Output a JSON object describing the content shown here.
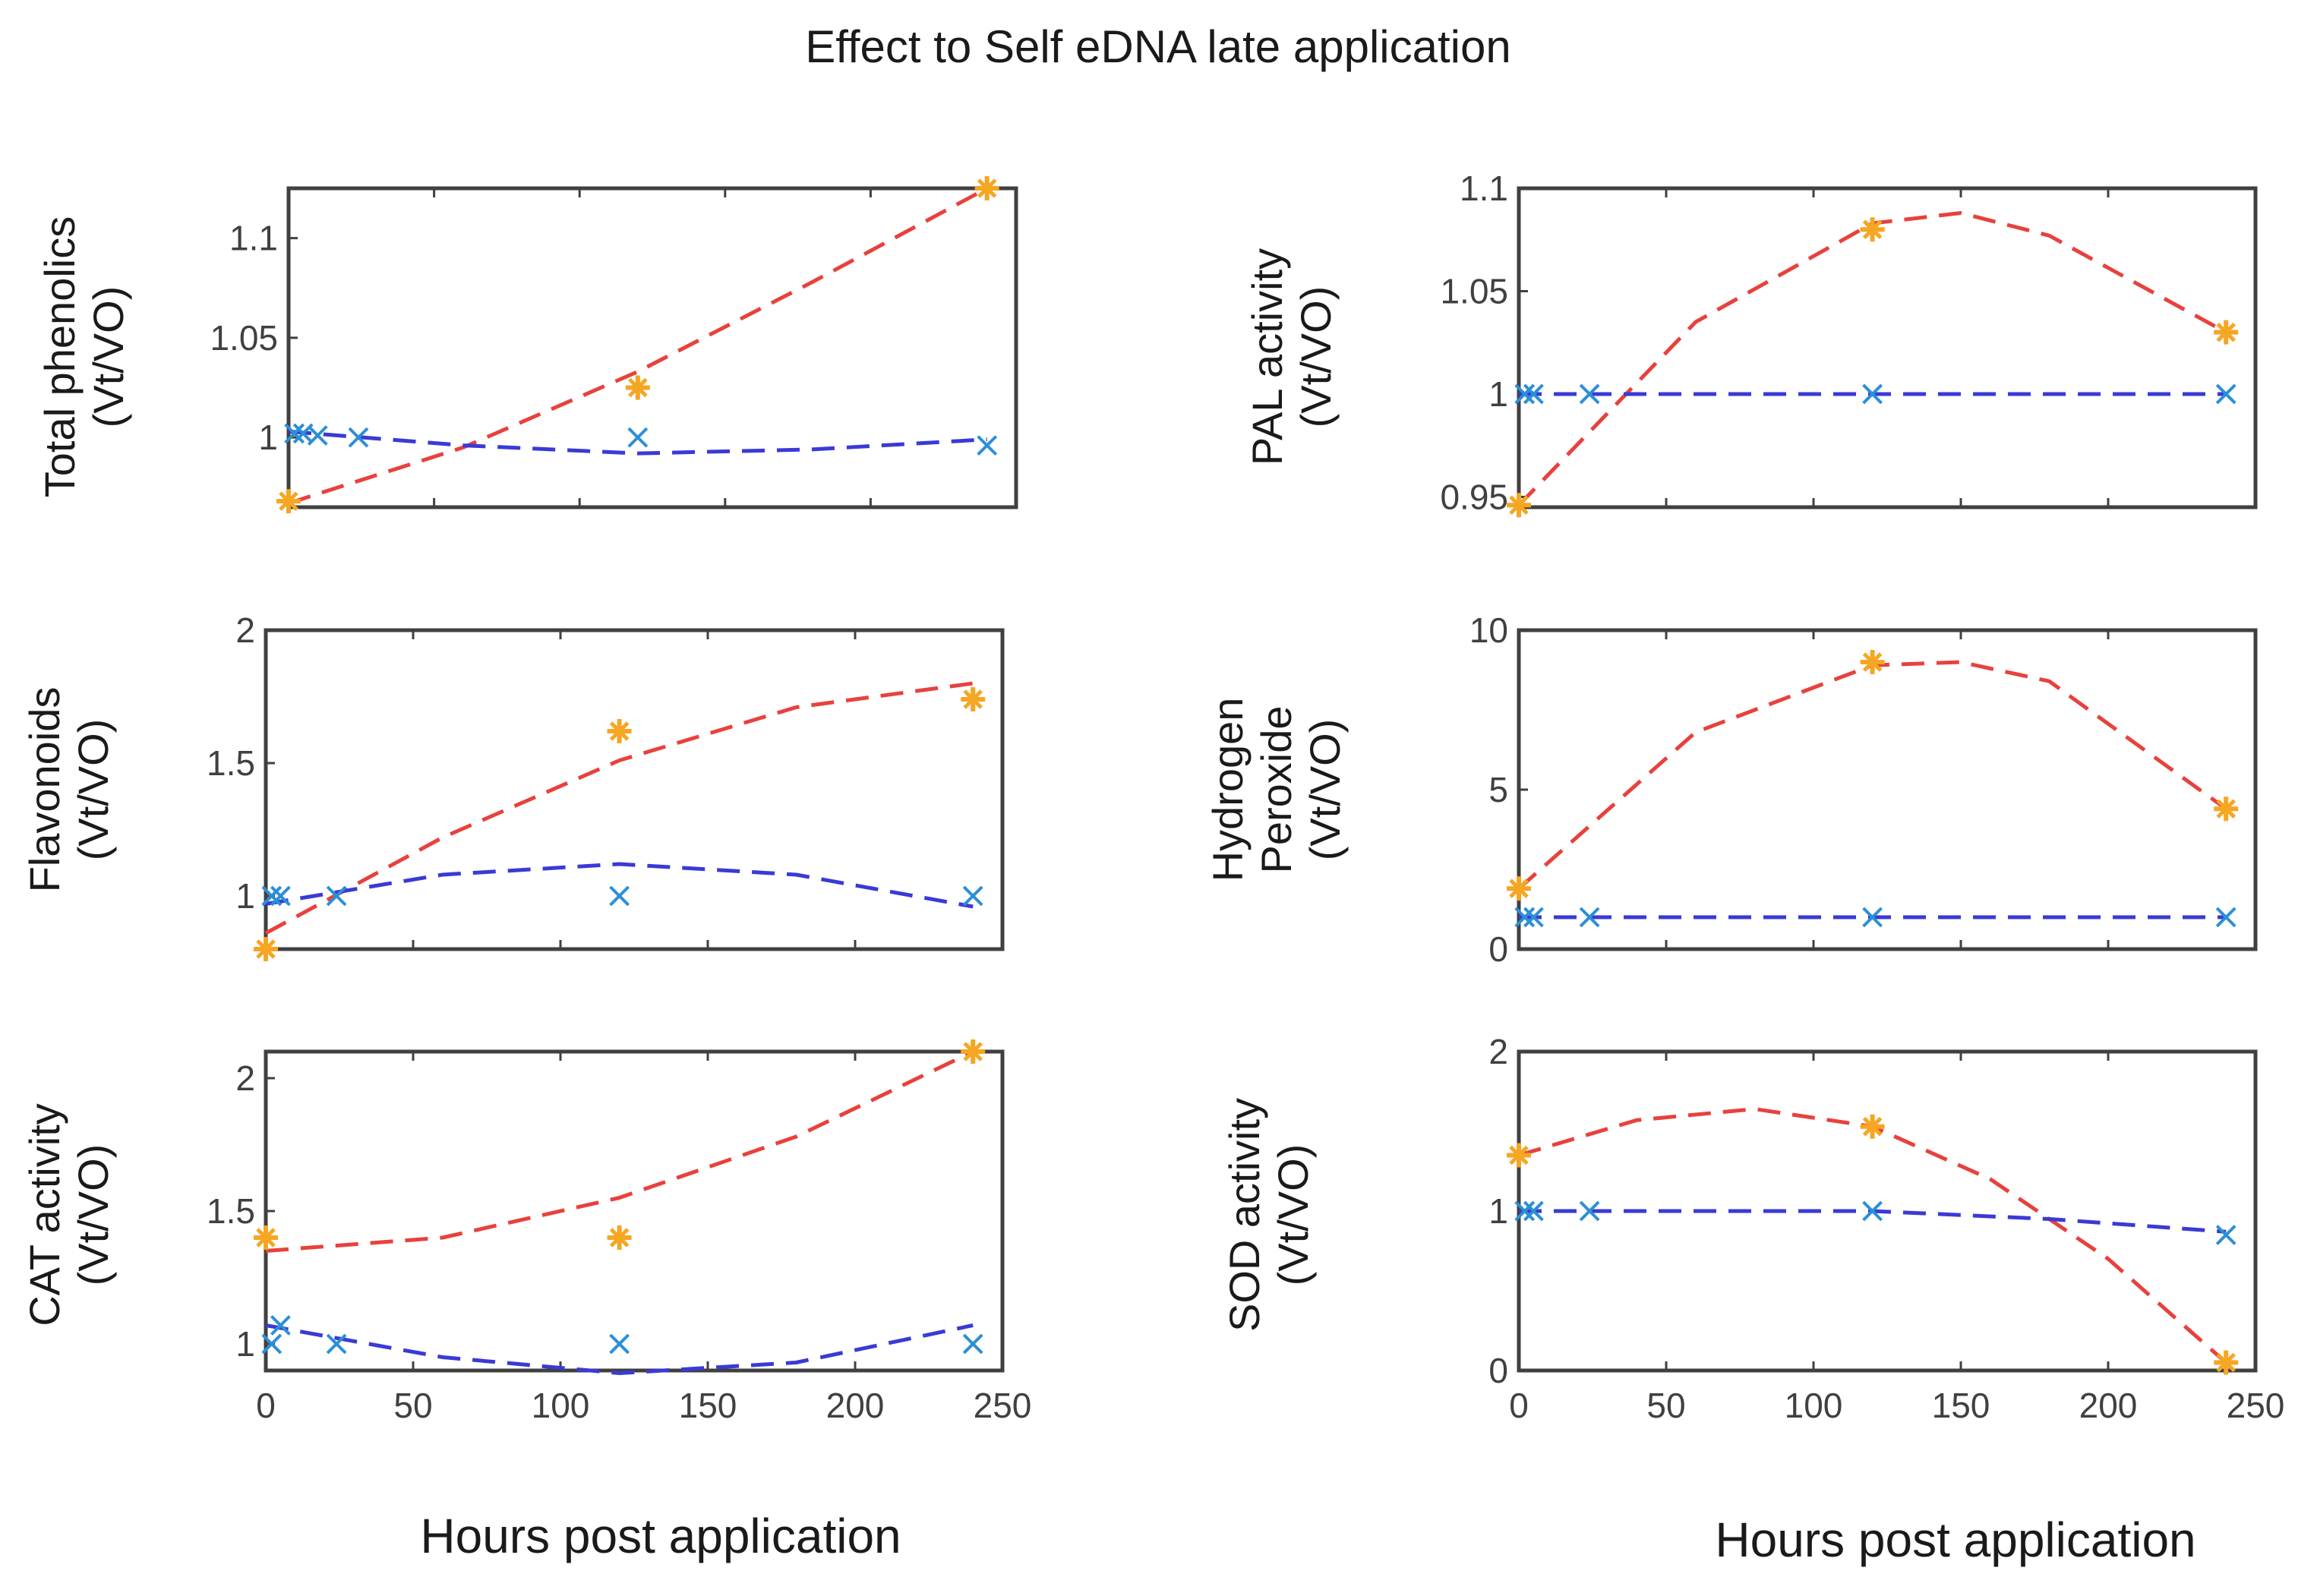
{
  "title": "Effect to Self  eDNA late application",
  "xlabel_left": "Hours post application",
  "xlabel_right": "Hours post application",
  "colors": {
    "treated_marker": "#f5a623",
    "treated_fit": "#e8413c",
    "control_marker": "#2b8fd6",
    "control_fit": "#3a3ad6"
  },
  "chart_data": [
    {
      "type": "scatter",
      "ylabel": [
        "Total phenolics",
        "(Vt/VO)"
      ],
      "xlim": [
        0,
        250
      ],
      "ylim": [
        0.965,
        1.125
      ],
      "xticks": [],
      "yticks": [
        1,
        1.05,
        1.1
      ],
      "yticklabels": [
        "1",
        "1.05",
        "1.1"
      ],
      "series": [
        {
          "role": "treated",
          "points": [
            [
              0,
              0.968
            ],
            [
              120,
              1.025
            ],
            [
              240,
              1.125
            ]
          ],
          "fit": [
            [
              0,
              0.967
            ],
            [
              60,
              0.995
            ],
            [
              120,
              1.033
            ],
            [
              180,
              1.078
            ],
            [
              240,
              1.125
            ]
          ]
        },
        {
          "role": "control",
          "points": [
            [
              2,
              1.002
            ],
            [
              5,
              1.002
            ],
            [
              10,
              1.001
            ],
            [
              24,
              1.0
            ],
            [
              120,
              1.0
            ],
            [
              240,
              0.996
            ]
          ],
          "fit": [
            [
              0,
              1.003
            ],
            [
              60,
              0.996
            ],
            [
              120,
              0.992
            ],
            [
              180,
              0.994
            ],
            [
              240,
              0.999
            ]
          ]
        }
      ]
    },
    {
      "type": "scatter",
      "ylabel": [
        "PAL activity",
        "(Vt/VO)"
      ],
      "xlim": [
        0,
        250
      ],
      "ylim": [
        0.945,
        1.1
      ],
      "xticks": [],
      "yticks": [
        0.95,
        1,
        1.05,
        1.1
      ],
      "yticklabels": [
        "0.95",
        "1",
        "1.05",
        "1.1"
      ],
      "series": [
        {
          "role": "treated",
          "points": [
            [
              0,
              0.946
            ],
            [
              120,
              1.08
            ],
            [
              240,
              1.03
            ]
          ],
          "fit": [
            [
              0,
              0.946
            ],
            [
              60,
              1.035
            ],
            [
              120,
              1.083
            ],
            [
              150,
              1.088
            ],
            [
              180,
              1.077
            ],
            [
              240,
              1.03
            ]
          ]
        },
        {
          "role": "control",
          "points": [
            [
              2,
              1.0
            ],
            [
              5,
              1.0
            ],
            [
              24,
              1.0
            ],
            [
              120,
              1.0
            ],
            [
              240,
              1.0
            ]
          ],
          "fit": [
            [
              0,
              1.0
            ],
            [
              240,
              1.0
            ]
          ]
        }
      ]
    },
    {
      "type": "scatter",
      "ylabel": [
        "Flavonoids",
        "(Vt/VO)"
      ],
      "xlim": [
        0,
        250
      ],
      "ylim": [
        0.8,
        2.0
      ],
      "xticks": [],
      "yticks": [
        1,
        1.5,
        2
      ],
      "yticklabels": [
        "1",
        "1.5",
        "2"
      ],
      "series": [
        {
          "role": "treated",
          "points": [
            [
              0,
              0.8
            ],
            [
              120,
              1.62
            ],
            [
              240,
              1.74
            ]
          ],
          "fit": [
            [
              0,
              0.86
            ],
            [
              60,
              1.22
            ],
            [
              120,
              1.51
            ],
            [
              180,
              1.71
            ],
            [
              240,
              1.8
            ]
          ]
        },
        {
          "role": "control",
          "points": [
            [
              2,
              1.0
            ],
            [
              5,
              1.0
            ],
            [
              24,
              1.0
            ],
            [
              120,
              1.0
            ],
            [
              240,
              1.0
            ]
          ],
          "fit": [
            [
              0,
              0.97
            ],
            [
              60,
              1.08
            ],
            [
              120,
              1.12
            ],
            [
              180,
              1.08
            ],
            [
              240,
              0.96
            ]
          ]
        }
      ]
    },
    {
      "type": "scatter",
      "ylabel": [
        "Hydrogen",
        "Peroxide",
        "(Vt/VO)"
      ],
      "xlim": [
        0,
        250
      ],
      "ylim": [
        0,
        10
      ],
      "xticks": [],
      "yticks": [
        0,
        5,
        10
      ],
      "yticklabels": [
        "0",
        "5",
        "10"
      ],
      "series": [
        {
          "role": "treated",
          "points": [
            [
              0,
              1.9
            ],
            [
              120,
              9.0
            ],
            [
              240,
              4.4
            ]
          ],
          "fit": [
            [
              0,
              1.9
            ],
            [
              60,
              6.8
            ],
            [
              120,
              8.9
            ],
            [
              150,
              9.0
            ],
            [
              180,
              8.4
            ],
            [
              240,
              4.4
            ]
          ]
        },
        {
          "role": "control",
          "points": [
            [
              2,
              1.0
            ],
            [
              5,
              1.0
            ],
            [
              24,
              1.0
            ],
            [
              120,
              1.0
            ],
            [
              240,
              1.0
            ]
          ],
          "fit": [
            [
              0,
              1.0
            ],
            [
              240,
              1.0
            ]
          ]
        }
      ]
    },
    {
      "type": "scatter",
      "ylabel": [
        "CAT activity",
        "(Vt/VO)"
      ],
      "xlim": [
        0,
        250
      ],
      "ylim": [
        0.9,
        2.1
      ],
      "xticks": [
        0,
        50,
        100,
        150,
        200,
        250
      ],
      "xticklabels": [
        "0",
        "50",
        "100",
        "150",
        "200",
        "250"
      ],
      "yticks": [
        1,
        1.5,
        2
      ],
      "yticklabels": [
        "1",
        "1.5",
        "2"
      ],
      "series": [
        {
          "role": "treated",
          "points": [
            [
              0,
              1.4
            ],
            [
              120,
              1.4
            ],
            [
              240,
              2.1
            ]
          ],
          "fit": [
            [
              0,
              1.35
            ],
            [
              60,
              1.4
            ],
            [
              120,
              1.55
            ],
            [
              180,
              1.78
            ],
            [
              240,
              2.1
            ]
          ]
        },
        {
          "role": "control",
          "points": [
            [
              2,
              1.0
            ],
            [
              5,
              1.07
            ],
            [
              24,
              1.0
            ],
            [
              120,
              1.0
            ],
            [
              240,
              1.0
            ]
          ],
          "fit": [
            [
              0,
              1.07
            ],
            [
              60,
              0.95
            ],
            [
              120,
              0.89
            ],
            [
              180,
              0.93
            ],
            [
              240,
              1.07
            ]
          ]
        }
      ]
    },
    {
      "type": "scatter",
      "ylabel": [
        "SOD activity",
        "(Vt/VO)"
      ],
      "xlim": [
        0,
        250
      ],
      "ylim": [
        0,
        2
      ],
      "xticks": [
        0,
        50,
        100,
        150,
        200,
        250
      ],
      "xticklabels": [
        "0",
        "50",
        "100",
        "150",
        "200",
        "250"
      ],
      "yticks": [
        0,
        1,
        2
      ],
      "yticklabels": [
        "0",
        "1",
        "2"
      ],
      "series": [
        {
          "role": "treated",
          "points": [
            [
              0,
              1.35
            ],
            [
              120,
              1.53
            ],
            [
              240,
              0.05
            ]
          ],
          "fit": [
            [
              0,
              1.35
            ],
            [
              40,
              1.57
            ],
            [
              80,
              1.64
            ],
            [
              120,
              1.53
            ],
            [
              160,
              1.2
            ],
            [
              200,
              0.7
            ],
            [
              240,
              0.05
            ]
          ]
        },
        {
          "role": "control",
          "points": [
            [
              2,
              1.0
            ],
            [
              5,
              1.0
            ],
            [
              24,
              1.0
            ],
            [
              120,
              1.0
            ],
            [
              240,
              0.85
            ]
          ],
          "fit": [
            [
              0,
              1.0
            ],
            [
              120,
              1.0
            ],
            [
              180,
              0.95
            ],
            [
              240,
              0.87
            ]
          ]
        }
      ]
    }
  ]
}
